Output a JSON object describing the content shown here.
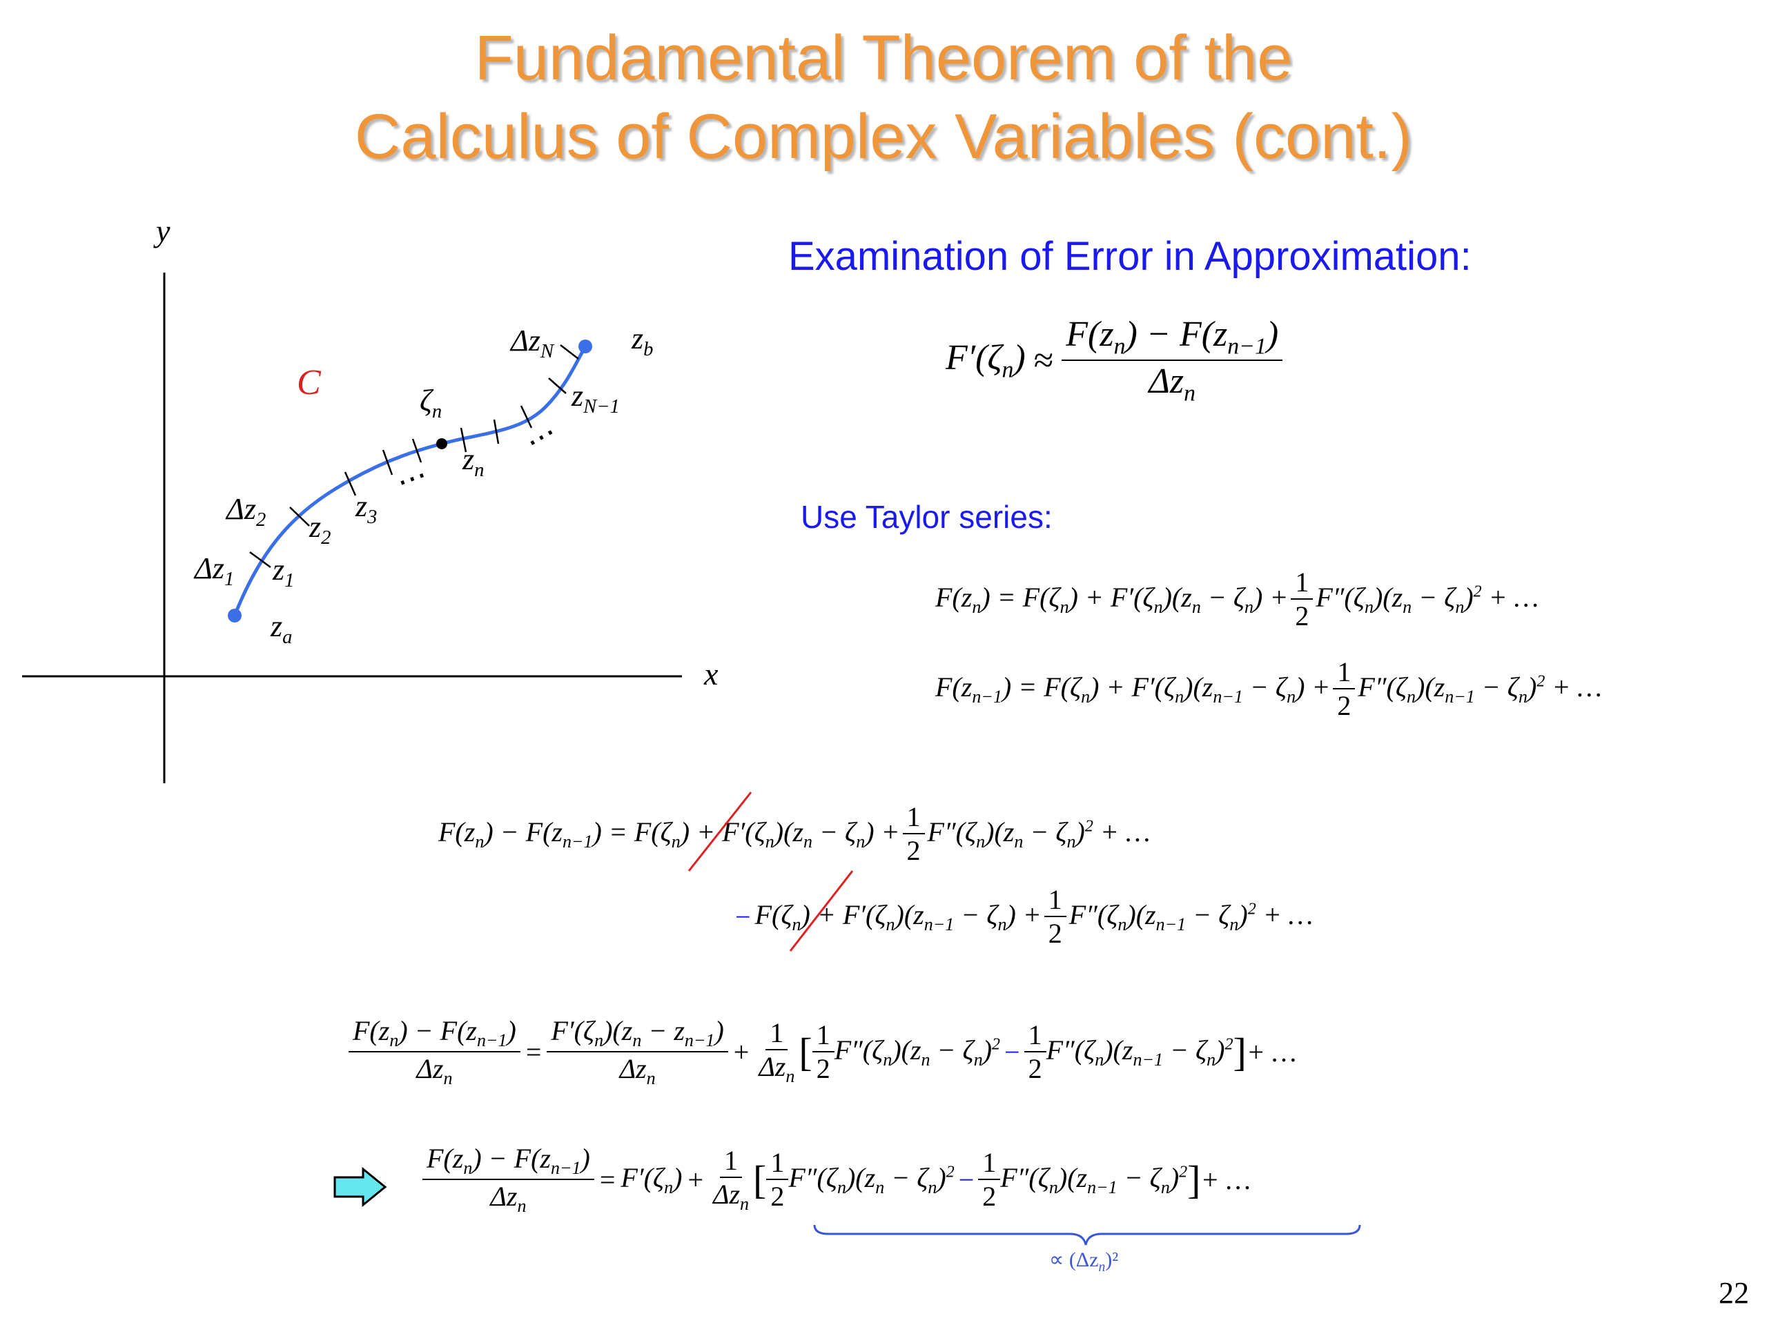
{
  "title": {
    "line1": "Fundamental Theorem of the",
    "line2": "Calculus of Complex Variables (cont.)"
  },
  "diagram": {
    "y_axis_label": "y",
    "x_axis_label": "x",
    "curve_label": "C",
    "za": "z",
    "za_sub": "a",
    "zb": "z",
    "zb_sub": "b",
    "z1": "z",
    "z1_sub": "1",
    "z2": "z",
    "z2_sub": "2",
    "z3": "z",
    "z3_sub": "3",
    "zn": "z",
    "zn_sub": "n",
    "zN1": "z",
    "zN1_sub": "N−1",
    "zeta": "ζ",
    "zeta_sub": "n",
    "dz1": "Δz",
    "dz1_sub": "1",
    "dz2": "Δz",
    "dz2_sub": "2",
    "dzN": "Δz",
    "dzN_sub": "N",
    "dots1": "⋯",
    "dots2": "⋯",
    "colors": {
      "curve": "#3a6fe8",
      "curve_label": "#e02020",
      "axis": "#000000"
    }
  },
  "section1": {
    "heading": "Examination of Error in Approximation:"
  },
  "section2": {
    "heading": "Use Taylor series:"
  },
  "page_number": "22",
  "colors": {
    "title": "#f0963a",
    "heading": "#1a1aee",
    "strike": "#e02020",
    "arrow_fill": "#66e6ee"
  },
  "brace_label": "∝ (Δz",
  "brace_label_sub": "n",
  "brace_label_tail": ")²"
}
